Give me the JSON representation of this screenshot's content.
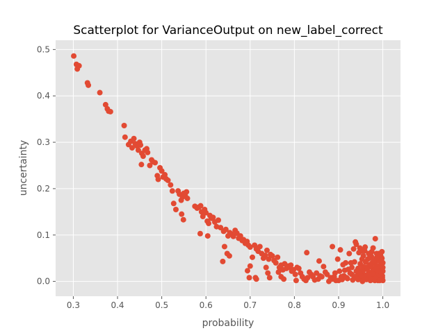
{
  "chart_data": {
    "type": "scatter",
    "title": "Scatterplot for VarianceOutput on new_label_correct",
    "xlabel": "probability",
    "ylabel": "uncertainty",
    "xlim": [
      0.26,
      1.04
    ],
    "ylim": [
      -0.032,
      0.52
    ],
    "xticks": [
      0.3,
      0.4,
      0.5,
      0.6,
      0.7,
      0.8,
      0.9,
      1.0
    ],
    "xtick_labels": [
      "0.3",
      "0.4",
      "0.5",
      "0.6",
      "0.7",
      "0.8",
      "0.9",
      "1.0"
    ],
    "yticks": [
      0.0,
      0.1,
      0.2,
      0.3,
      0.4,
      0.5
    ],
    "ytick_labels": [
      "0.0",
      "0.1",
      "0.2",
      "0.3",
      "0.4",
      "0.5"
    ],
    "grid": true,
    "background_color": "#e5e5e5",
    "grid_color": "#ffffff",
    "marker_color": "#e24a33",
    "series": [
      {
        "points": [
          [
            0.301,
            0.486
          ],
          [
            0.307,
            0.468
          ],
          [
            0.309,
            0.458
          ],
          [
            0.313,
            0.465
          ],
          [
            0.332,
            0.428
          ],
          [
            0.334,
            0.423
          ],
          [
            0.36,
            0.407
          ],
          [
            0.373,
            0.381
          ],
          [
            0.377,
            0.372
          ],
          [
            0.38,
            0.367
          ],
          [
            0.384,
            0.366
          ],
          [
            0.415,
            0.336
          ],
          [
            0.417,
            0.311
          ],
          [
            0.425,
            0.295
          ],
          [
            0.43,
            0.302
          ],
          [
            0.433,
            0.288
          ],
          [
            0.437,
            0.308
          ],
          [
            0.44,
            0.297
          ],
          [
            0.444,
            0.292
          ],
          [
            0.447,
            0.283
          ],
          [
            0.45,
            0.3
          ],
          [
            0.452,
            0.294
          ],
          [
            0.455,
            0.276
          ],
          [
            0.458,
            0.27
          ],
          [
            0.462,
            0.283
          ],
          [
            0.466,
            0.286
          ],
          [
            0.468,
            0.278
          ],
          [
            0.454,
            0.252
          ],
          [
            0.473,
            0.25
          ],
          [
            0.477,
            0.262
          ],
          [
            0.48,
            0.258
          ],
          [
            0.485,
            0.256
          ],
          [
            0.49,
            0.228
          ],
          [
            0.492,
            0.22
          ],
          [
            0.496,
            0.245
          ],
          [
            0.5,
            0.238
          ],
          [
            0.503,
            0.225
          ],
          [
            0.507,
            0.23
          ],
          [
            0.51,
            0.221
          ],
          [
            0.514,
            0.218
          ],
          [
            0.52,
            0.208
          ],
          [
            0.524,
            0.195
          ],
          [
            0.527,
            0.168
          ],
          [
            0.532,
            0.155
          ],
          [
            0.537,
            0.195
          ],
          [
            0.54,
            0.188
          ],
          [
            0.544,
            0.175
          ],
          [
            0.547,
            0.182
          ],
          [
            0.55,
            0.19
          ],
          [
            0.553,
            0.185
          ],
          [
            0.556,
            0.193
          ],
          [
            0.558,
            0.179
          ],
          [
            0.545,
            0.145
          ],
          [
            0.549,
            0.133
          ],
          [
            0.575,
            0.162
          ],
          [
            0.58,
            0.158
          ],
          [
            0.584,
            0.16
          ],
          [
            0.588,
            0.163
          ],
          [
            0.59,
            0.15
          ],
          [
            0.593,
            0.14
          ],
          [
            0.597,
            0.155
          ],
          [
            0.6,
            0.148
          ],
          [
            0.603,
            0.13
          ],
          [
            0.606,
            0.125
          ],
          [
            0.609,
            0.142
          ],
          [
            0.612,
            0.136
          ],
          [
            0.616,
            0.138
          ],
          [
            0.62,
            0.128
          ],
          [
            0.624,
            0.118
          ],
          [
            0.628,
            0.132
          ],
          [
            0.587,
            0.103
          ],
          [
            0.604,
            0.098
          ],
          [
            0.633,
            0.116
          ],
          [
            0.64,
            0.108
          ],
          [
            0.645,
            0.112
          ],
          [
            0.65,
            0.098
          ],
          [
            0.654,
            0.105
          ],
          [
            0.658,
            0.102
          ],
          [
            0.662,
            0.097
          ],
          [
            0.666,
            0.11
          ],
          [
            0.67,
            0.104
          ],
          [
            0.674,
            0.093
          ],
          [
            0.678,
            0.098
          ],
          [
            0.682,
            0.088
          ],
          [
            0.685,
            0.09
          ],
          [
            0.689,
            0.082
          ],
          [
            0.693,
            0.086
          ],
          [
            0.696,
            0.078
          ],
          [
            0.7,
            0.074
          ],
          [
            0.648,
            0.06
          ],
          [
            0.653,
            0.055
          ],
          [
            0.638,
            0.043
          ],
          [
            0.642,
            0.075
          ],
          [
            0.705,
            0.052
          ],
          [
            0.71,
            0.078
          ],
          [
            0.714,
            0.07
          ],
          [
            0.718,
            0.065
          ],
          [
            0.722,
            0.075
          ],
          [
            0.726,
            0.06
          ],
          [
            0.73,
            0.05
          ],
          [
            0.734,
            0.056
          ],
          [
            0.738,
            0.067
          ],
          [
            0.742,
            0.048
          ],
          [
            0.746,
            0.058
          ],
          [
            0.75,
            0.055
          ],
          [
            0.754,
            0.045
          ],
          [
            0.758,
            0.04
          ],
          [
            0.762,
            0.052
          ],
          [
            0.766,
            0.03
          ],
          [
            0.77,
            0.035
          ],
          [
            0.774,
            0.025
          ],
          [
            0.778,
            0.038
          ],
          [
            0.782,
            0.028
          ],
          [
            0.786,
            0.033
          ],
          [
            0.79,
            0.03
          ],
          [
            0.794,
            0.022
          ],
          [
            0.798,
            0.025
          ],
          [
            0.802,
            0.015
          ],
          [
            0.806,
            0.03
          ],
          [
            0.81,
            0.028
          ],
          [
            0.814,
            0.018
          ],
          [
            0.818,
            0.01
          ],
          [
            0.822,
            0.005
          ],
          [
            0.826,
            0.002
          ],
          [
            0.83,
            0.008
          ],
          [
            0.834,
            0.02
          ],
          [
            0.838,
            0.015
          ],
          [
            0.842,
            0.01
          ],
          [
            0.846,
            0.003
          ],
          [
            0.85,
            0.018
          ],
          [
            0.854,
            0.005
          ],
          [
            0.858,
            0.012
          ],
          [
            0.862,
            0.01
          ],
          [
            0.866,
            0.032
          ],
          [
            0.87,
            0.02
          ],
          [
            0.874,
            0.015
          ],
          [
            0.878,
            0.0
          ],
          [
            0.882,
            0.008
          ],
          [
            0.886,
            0.005
          ],
          [
            0.89,
            0.01
          ],
          [
            0.698,
            0.008
          ],
          [
            0.7,
            0.033
          ],
          [
            0.694,
            0.023
          ],
          [
            0.712,
            0.008
          ],
          [
            0.714,
            0.005
          ],
          [
            0.736,
            0.03
          ],
          [
            0.74,
            0.018
          ],
          [
            0.744,
            0.008
          ],
          [
            0.764,
            0.02
          ],
          [
            0.77,
            0.01
          ],
          [
            0.776,
            0.005
          ],
          [
            0.792,
            0.035
          ],
          [
            0.804,
            0.002
          ],
          [
            0.828,
            0.062
          ],
          [
            0.856,
            0.044
          ],
          [
            0.886,
            0.075
          ],
          [
            0.892,
            0.018
          ],
          [
            0.894,
            0.002
          ],
          [
            0.898,
            0.048
          ],
          [
            0.902,
            0.022
          ],
          [
            0.904,
            0.068
          ],
          [
            0.908,
            0.004
          ],
          [
            0.912,
            0.012
          ],
          [
            0.916,
            0.04
          ],
          [
            0.918,
            0.008
          ],
          [
            0.922,
            0.026
          ],
          [
            0.924,
            0.06
          ],
          [
            0.928,
            0.04
          ],
          [
            0.93,
            0.015
          ],
          [
            0.932,
            0.003
          ],
          [
            0.934,
            0.07
          ],
          [
            0.936,
            0.042
          ],
          [
            0.938,
            0.085
          ],
          [
            0.94,
            0.08
          ],
          [
            0.942,
            0.012
          ],
          [
            0.944,
            0.028
          ],
          [
            0.946,
            0.062
          ],
          [
            0.948,
            0.072
          ],
          [
            0.95,
            0.022
          ],
          [
            0.952,
            0.066
          ],
          [
            0.954,
            0.0
          ],
          [
            0.956,
            0.055
          ],
          [
            0.958,
            0.014
          ],
          [
            0.96,
            0.074
          ],
          [
            0.962,
            0.03
          ],
          [
            0.964,
            0.008
          ],
          [
            0.966,
            0.048
          ],
          [
            0.968,
            0.06
          ],
          [
            0.97,
            0.036
          ],
          [
            0.972,
            0.018
          ],
          [
            0.974,
            0.054
          ],
          [
            0.976,
            0.005
          ],
          [
            0.978,
            0.072
          ],
          [
            0.98,
            0.02
          ],
          [
            0.982,
            0.04
          ],
          [
            0.983,
            0.092
          ],
          [
            0.985,
            0.01
          ],
          [
            0.986,
            0.06
          ],
          [
            0.987,
            0.048
          ],
          [
            0.988,
            0.032
          ],
          [
            0.989,
            0.002
          ],
          [
            0.99,
            0.02
          ],
          [
            0.991,
            0.045
          ],
          [
            0.992,
            0.008
          ],
          [
            0.993,
            0.034
          ],
          [
            0.994,
            0.015
          ],
          [
            0.995,
            0.056
          ],
          [
            0.996,
            0.004
          ],
          [
            0.997,
            0.025
          ],
          [
            0.998,
            0.064
          ],
          [
            0.999,
            0.012
          ],
          [
            1.0,
            0.04
          ],
          [
            1.0,
            0.002
          ],
          [
            0.998,
            0.05
          ],
          [
            0.996,
            0.03
          ],
          [
            0.994,
            0.01
          ],
          [
            0.992,
            0.005
          ],
          [
            0.99,
            0.028
          ],
          [
            0.988,
            0.015
          ],
          [
            0.986,
            0.006
          ],
          [
            0.984,
            0.036
          ],
          [
            0.982,
            0.002
          ],
          [
            0.98,
            0.012
          ],
          [
            0.978,
            0.026
          ],
          [
            0.976,
            0.04
          ],
          [
            0.974,
            0.01
          ],
          [
            0.972,
            0.002
          ],
          [
            0.968,
            0.02
          ],
          [
            0.964,
            0.03
          ],
          [
            0.96,
            0.012
          ],
          [
            0.956,
            0.024
          ],
          [
            0.952,
            0.006
          ],
          [
            0.948,
            0.016
          ],
          [
            0.944,
            0.004
          ],
          [
            0.94,
            0.022
          ],
          [
            0.936,
            0.01
          ],
          [
            0.93,
            0.03
          ],
          [
            0.926,
            0.018
          ],
          [
            0.92,
            0.006
          ],
          [
            0.914,
            0.024
          ],
          [
            0.91,
            0.036
          ],
          [
            0.906,
            0.01
          ],
          [
            0.9,
            0.002
          ],
          [
            1.0,
            0.022
          ],
          [
            1.0,
            0.03
          ],
          [
            0.999,
            0.008
          ],
          [
            0.997,
            0.046
          ],
          [
            0.995,
            0.018
          ],
          [
            0.993,
            0.002
          ],
          [
            0.991,
            0.06
          ],
          [
            0.989,
            0.024
          ],
          [
            0.987,
            0.012
          ],
          [
            0.985,
            0.05
          ],
          [
            0.983,
            0.028
          ],
          [
            0.981,
            0.008
          ],
          [
            0.979,
            0.044
          ],
          [
            0.977,
            0.016
          ],
          [
            0.975,
            0.064
          ],
          [
            0.973,
            0.032
          ],
          [
            0.971,
            0.006
          ],
          [
            0.969,
            0.05
          ],
          [
            0.967,
            0.014
          ],
          [
            0.965,
            0.026
          ],
          [
            0.963,
            0.004
          ],
          [
            0.961,
            0.042
          ],
          [
            0.959,
            0.066
          ],
          [
            0.957,
            0.008
          ],
          [
            0.955,
            0.032
          ],
          [
            0.953,
            0.048
          ],
          [
            0.951,
            0.012
          ],
          [
            0.949,
            0.038
          ]
        ]
      }
    ]
  }
}
